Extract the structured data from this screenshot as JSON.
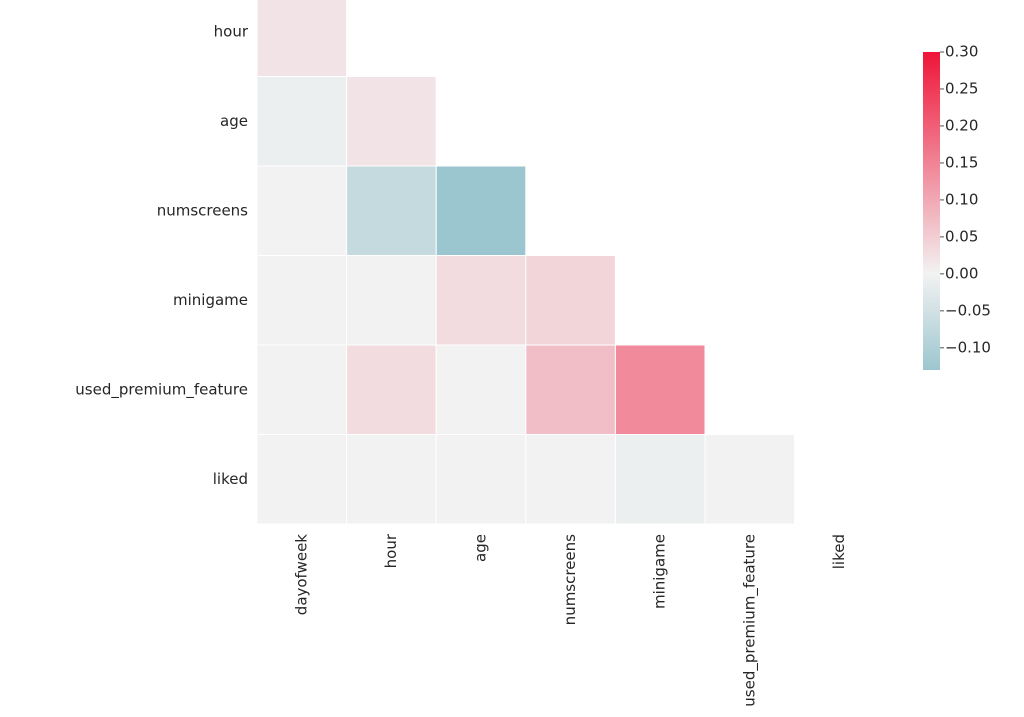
{
  "chart_data": {
    "type": "heatmap",
    "title": "",
    "mask": "upper-triangle",
    "row_labels": [
      "hour",
      "age",
      "numscreens",
      "minigame",
      "used_premium_feature",
      "liked"
    ],
    "col_labels": [
      "dayofweek",
      "hour",
      "age",
      "numscreens",
      "minigame",
      "used_premium_feature",
      "liked"
    ],
    "values": [
      [
        0.02
      ],
      [
        -0.01,
        0.02
      ],
      [
        -0.0,
        -0.07,
        -0.13
      ],
      [
        -0.0,
        -0.0,
        0.03,
        0.04
      ],
      [
        -0.0,
        0.03,
        -0.0,
        0.07,
        0.14
      ],
      [
        -0.0,
        -0.0,
        -0.0,
        -0.0,
        -0.01,
        -0.0
      ]
    ],
    "colorbar": {
      "min": -0.13,
      "max": 0.3,
      "ticks": [
        0.3,
        0.25,
        0.2,
        0.15,
        0.1,
        0.05,
        0.0,
        -0.05,
        -0.1
      ],
      "tick_labels": [
        "0.30",
        "0.25",
        "0.20",
        "0.15",
        "0.10",
        "0.05",
        "0.00",
        "−0.05",
        "−0.10"
      ],
      "colors": {
        "negative_end": "#9cc6cf",
        "center": "#f2f2f2",
        "positive_end": "#ef1538"
      }
    }
  }
}
